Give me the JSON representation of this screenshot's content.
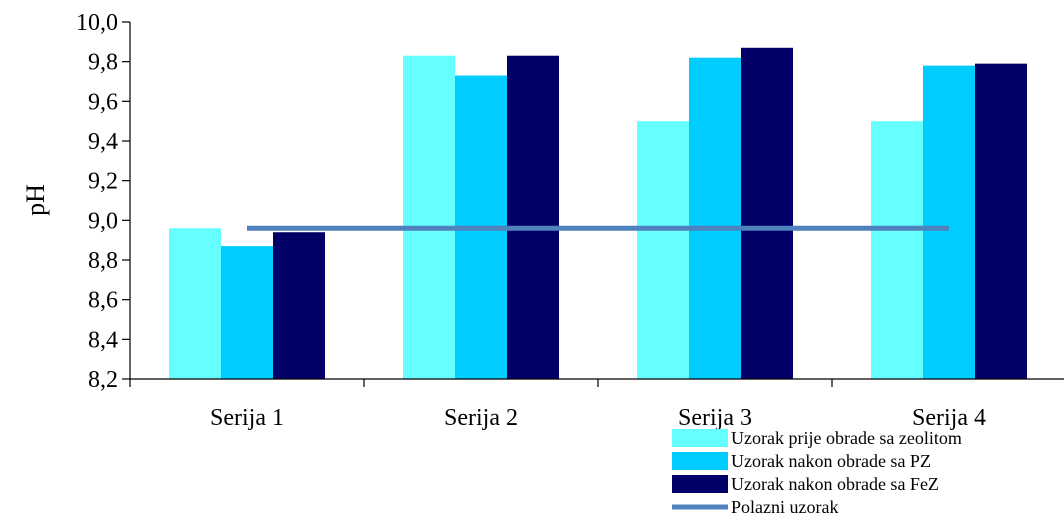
{
  "chart_data": {
    "type": "bar",
    "title": "",
    "xlabel": "",
    "ylabel": "pH",
    "ylim": [
      8.2,
      10.0
    ],
    "yticks": [
      "8,2",
      "8,4",
      "8,6",
      "8,8",
      "9,0",
      "9,2",
      "9,4",
      "9,6",
      "9,8",
      "10,0"
    ],
    "categories": [
      "Serija 1",
      "Serija 2",
      "Serija 3",
      "Serija 4"
    ],
    "series": [
      {
        "name": "Uzorak prije obrade sa zeolitom",
        "type": "bar",
        "color": "#66FFFF",
        "values": [
          8.96,
          9.83,
          9.5,
          9.5
        ]
      },
      {
        "name": "Uzorak nakon obrade sa PZ",
        "type": "bar",
        "color": "#00CCFF",
        "values": [
          8.87,
          9.73,
          9.82,
          9.78
        ]
      },
      {
        "name": "Uzorak nakon obrade sa FeZ",
        "type": "bar",
        "color": "#000066",
        "values": [
          8.94,
          9.83,
          9.87,
          9.79
        ]
      },
      {
        "name": "Polazni uzorak",
        "type": "line",
        "color": "#4F81BD",
        "values": [
          8.96,
          8.96,
          8.96,
          8.96
        ]
      }
    ],
    "grid": false,
    "legend_position": "bottom-right"
  }
}
